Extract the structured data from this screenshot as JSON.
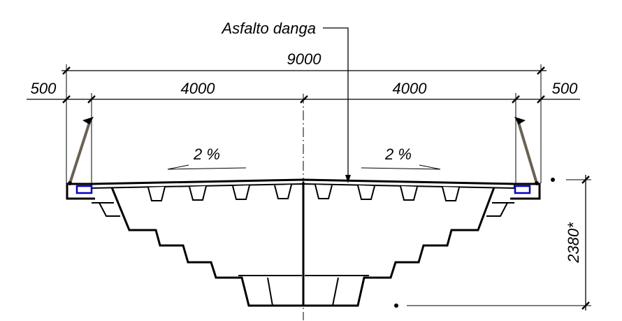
{
  "labels": {
    "asphalt_callout": "Asfalto danga",
    "overall_width": "9000",
    "left_edge_width": "500",
    "left_lane_width": "4000",
    "right_lane_width": "4000",
    "right_edge_width": "500",
    "left_slope": "2 %",
    "right_slope": "2 %",
    "depth": "2380*"
  },
  "colors": {
    "lines": "#000000",
    "railing": "#6b6153",
    "drain": "#0000cc",
    "background": "#ffffff"
  }
}
